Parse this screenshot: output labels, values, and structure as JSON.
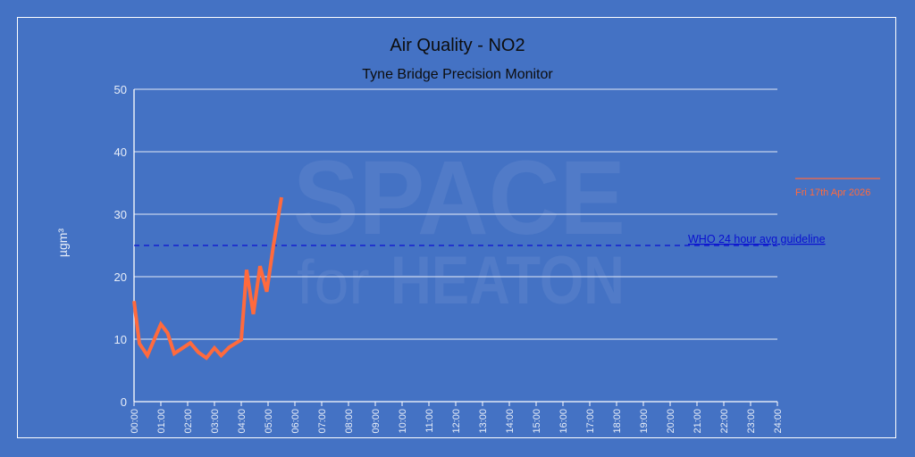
{
  "chart_data": {
    "type": "line",
    "title": "Air Quality - NO2",
    "subtitle": "Tyne Bridge Precision Monitor",
    "xlabel": "",
    "ylabel": "µgm³",
    "ylim": [
      0,
      50
    ],
    "xlim": [
      "00:00",
      "24:00"
    ],
    "y_ticks": [
      "0",
      "10",
      "20",
      "30",
      "40",
      "50"
    ],
    "x_ticks": [
      "00:00",
      "01:00",
      "02:00",
      "03:00",
      "04:00",
      "05:00",
      "06:00",
      "07:00",
      "08:00",
      "09:00",
      "10:00",
      "11:00",
      "12:00",
      "13:00",
      "14:00",
      "15:00",
      "16:00",
      "17:00",
      "18:00",
      "19:00",
      "20:00",
      "21:00",
      "22:00",
      "23:00",
      "24:00"
    ],
    "grid": true,
    "legend_position": "right",
    "series": [
      {
        "name": "Fri 17th Apr 2026",
        "color": "#ff6a3d",
        "x_hours": [
          0.0,
          0.2,
          0.5,
          1.0,
          1.25,
          1.5,
          2.1,
          2.4,
          2.7,
          3.0,
          3.25,
          3.55,
          4.0,
          4.2,
          4.45,
          4.7,
          4.95,
          5.2,
          5.5
        ],
        "values": [
          16.1,
          9.3,
          7.4,
          12.4,
          11.0,
          7.7,
          9.4,
          7.9,
          7.0,
          8.6,
          7.4,
          8.7,
          9.9,
          21.1,
          14.0,
          21.7,
          17.6,
          25.0,
          32.7
        ]
      }
    ],
    "annotations": [
      {
        "type": "hline",
        "y": 25,
        "label": "WHO 24 hour avg guideline",
        "color": "#0a10d0",
        "style": "dashed"
      }
    ]
  },
  "watermark": {
    "line1": "SPACE",
    "line2_small": "for",
    "line2_big": "HEATON"
  },
  "colors": {
    "background": "#4472c4",
    "series": "#ff6a3d",
    "guideline": "#0a10d0",
    "grid": "#ffffff"
  }
}
